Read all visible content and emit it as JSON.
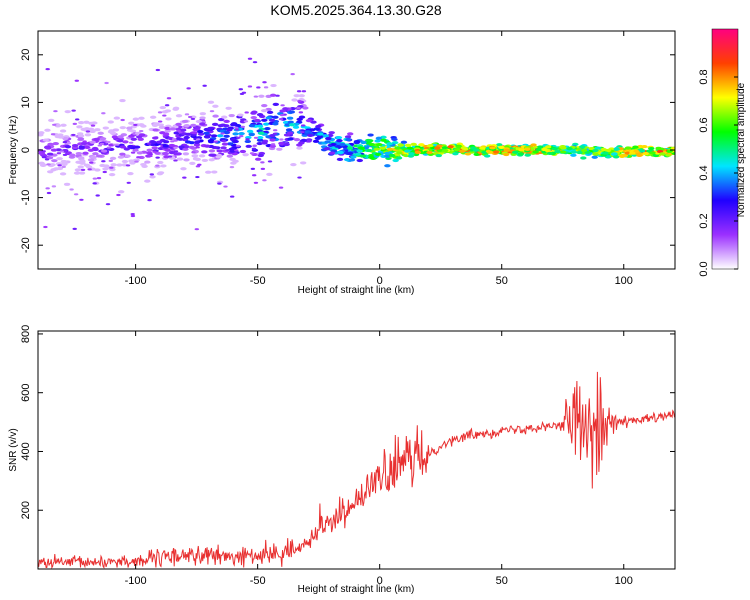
{
  "figure_title": "KOM5.2025.364.13.30.G28",
  "chart_data": [
    {
      "type": "heatmap",
      "title": "KOM5.2025.364.13.30.G28",
      "xlabel": "Height of straight line (km)",
      "ylabel": "Frequency (Hz)",
      "xlim": [
        -140,
        121
      ],
      "ylim": [
        -25,
        25
      ],
      "xticks": [
        -100,
        -50,
        0,
        50,
        100
      ],
      "xtick_labels": [
        "-100",
        "-50",
        "0",
        "50",
        "100"
      ],
      "yticks": [
        -20,
        -10,
        0,
        10,
        20
      ],
      "ytick_labels": [
        "-20",
        "-10",
        "0",
        "10",
        "20"
      ],
      "colorbar": {
        "label": "Normalized spectral amplitude",
        "range": [
          0,
          1
        ],
        "ticks": [
          0.0,
          0.2,
          0.4,
          0.6,
          0.8
        ],
        "tick_labels": [
          "0.0",
          "0.2",
          "0.4",
          "0.6",
          "0.8"
        ],
        "colors": [
          "#ffffff",
          "#9b30ff",
          "#2000ff",
          "#00e5ff",
          "#00ff00",
          "#ffff00",
          "#ff4000",
          "#ff0080"
        ]
      },
      "ridge": {
        "x": [
          -140,
          -120,
          -100,
          -80,
          -60,
          -45,
          -35,
          -28,
          -20,
          -10,
          0,
          10,
          20,
          40,
          60,
          80,
          90,
          100,
          121
        ],
        "y": [
          0,
          0.5,
          1,
          2,
          3,
          4.5,
          6,
          4,
          1.5,
          0,
          0.5,
          -0.5,
          0.2,
          0,
          0,
          0,
          -0.5,
          -0.3,
          -0.3
        ],
        "amplitude": [
          0.25,
          0.25,
          0.3,
          0.35,
          0.45,
          0.55,
          0.5,
          0.45,
          0.5,
          0.6,
          0.75,
          0.8,
          0.85,
          0.9,
          0.9,
          0.75,
          0.7,
          0.85,
          0.9
        ]
      }
    },
    {
      "type": "line",
      "xlabel": "Height of straight line (km)",
      "ylabel": "SNR (v/v)",
      "xlim": [
        -140,
        121
      ],
      "ylim": [
        0,
        810
      ],
      "xticks": [
        -100,
        -50,
        0,
        50,
        100
      ],
      "xtick_labels": [
        "-100",
        "-50",
        "0",
        "50",
        "100"
      ],
      "yticks": [
        200,
        400,
        600,
        800
      ],
      "ytick_labels": [
        "200",
        "400",
        "600",
        "800"
      ],
      "series": [
        {
          "name": "SNR",
          "color": "#e83030",
          "x": [
            -140,
            -120,
            -100,
            -90,
            -80,
            -70,
            -60,
            -50,
            -40,
            -35,
            -30,
            -25,
            -20,
            -15,
            -10,
            -5,
            0,
            5,
            10,
            15,
            20,
            25,
            30,
            40,
            50,
            60,
            70,
            75,
            80,
            85,
            90,
            95,
            100,
            110,
            121
          ],
          "y": [
            20,
            22,
            28,
            35,
            50,
            45,
            40,
            45,
            55,
            60,
            90,
            140,
            170,
            190,
            230,
            260,
            310,
            330,
            360,
            380,
            390,
            420,
            440,
            460,
            470,
            480,
            490,
            490,
            500,
            520,
            510,
            500,
            500,
            510,
            525
          ]
        }
      ]
    }
  ]
}
